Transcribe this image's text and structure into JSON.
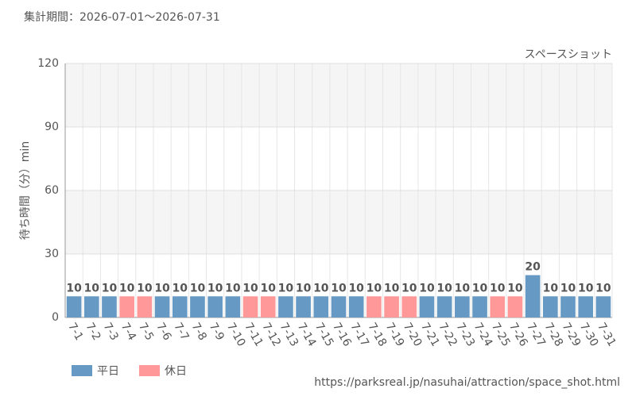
{
  "chart_data": {
    "type": "bar",
    "title": "集計期間：2026-07-01～2026-07-31",
    "subtitle": "スペースショット",
    "y_label": "待ち時間（分）min",
    "source": "https://parksreal.jp/nasuhai/attraction/space_shot.html",
    "categories": [
      "7-1",
      "7-2",
      "7-3",
      "7-4",
      "7-5",
      "7-6",
      "7-7",
      "7-8",
      "7-9",
      "7-10",
      "7-11",
      "7-12",
      "7-13",
      "7-14",
      "7-15",
      "7-16",
      "7-17",
      "7-18",
      "7-19",
      "7-20",
      "7-21",
      "7-22",
      "7-23",
      "7-24",
      "7-25",
      "7-26",
      "7-27",
      "7-28",
      "7-29",
      "7-30",
      "7-31"
    ],
    "series": [
      {
        "name": "平日",
        "color": "#6699c4",
        "values": [
          10,
          10,
          10,
          null,
          null,
          10,
          10,
          10,
          10,
          10,
          null,
          null,
          10,
          10,
          10,
          10,
          10,
          null,
          null,
          null,
          10,
          10,
          10,
          10,
          null,
          null,
          20,
          10,
          10,
          10,
          10
        ]
      },
      {
        "name": "休日",
        "color": "#ff9999",
        "values": [
          null,
          null,
          null,
          10,
          10,
          null,
          null,
          null,
          null,
          null,
          10,
          10,
          null,
          null,
          null,
          null,
          null,
          10,
          10,
          10,
          null,
          null,
          null,
          null,
          10,
          10,
          null,
          null,
          null,
          null,
          null
        ]
      }
    ],
    "ylim": [
      0,
      120
    ],
    "yticks": [
      0,
      30,
      60,
      90,
      120
    ],
    "grid": true,
    "legend": "bottom-left"
  }
}
